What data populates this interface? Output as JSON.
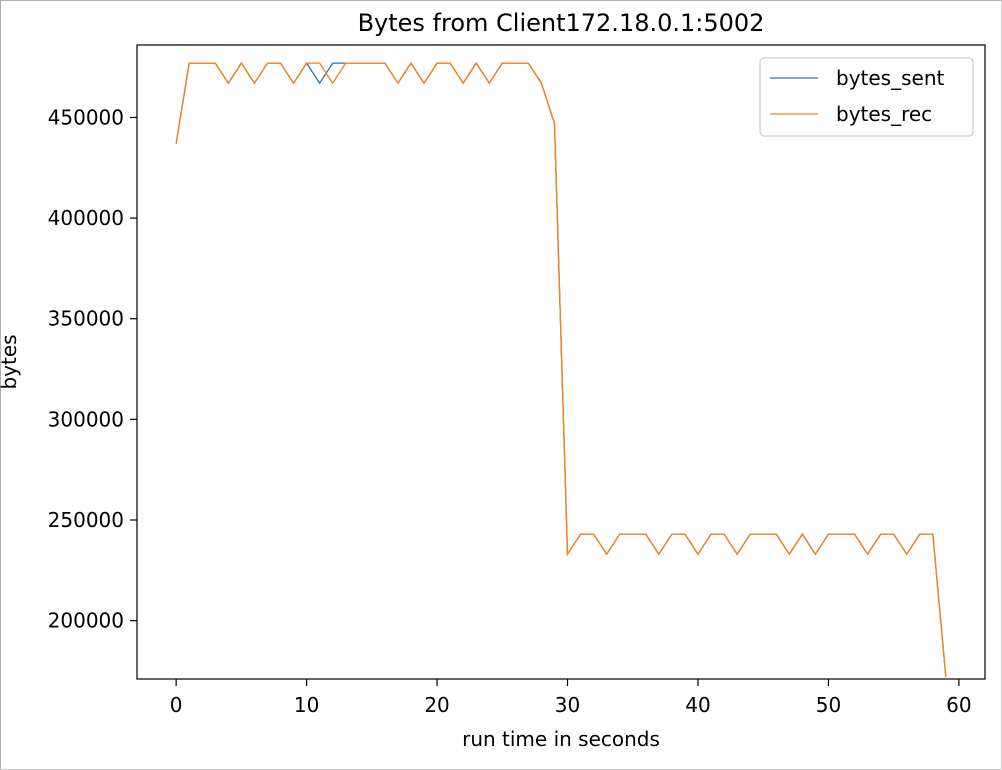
{
  "chart_data": {
    "type": "line",
    "title": "Bytes from Client172.18.0.1:5002",
    "xlabel": "run time in seconds",
    "ylabel": "bytes",
    "xlim": [
      -3,
      62
    ],
    "ylim": [
      171000,
      486000
    ],
    "xticks": [
      0,
      10,
      20,
      30,
      40,
      50,
      60
    ],
    "yticks": [
      200000,
      250000,
      300000,
      350000,
      400000,
      450000
    ],
    "grid": false,
    "legend_position": "upper right",
    "x": [
      0,
      1,
      2,
      3,
      4,
      5,
      6,
      7,
      8,
      9,
      10,
      11,
      12,
      13,
      14,
      15,
      16,
      17,
      18,
      19,
      20,
      21,
      22,
      23,
      24,
      25,
      26,
      27,
      28,
      29,
      30,
      31,
      32,
      33,
      34,
      35,
      36,
      37,
      38,
      39,
      40,
      41,
      42,
      43,
      44,
      45,
      46,
      47,
      48,
      49,
      50,
      51,
      52,
      53,
      54,
      55,
      56,
      57,
      58,
      59
    ],
    "series": [
      {
        "name": "bytes_sent",
        "color": "#1f77b4",
        "values": [
          437000,
          477000,
          477000,
          477000,
          467000,
          477000,
          467000,
          477000,
          477000,
          467000,
          477000,
          467000,
          477000,
          477000,
          477000,
          477000,
          477000,
          467000,
          477000,
          467000,
          477000,
          477000,
          467000,
          477000,
          467000,
          477000,
          477000,
          477000,
          467000,
          447000,
          233000,
          243000,
          243000,
          233000,
          243000,
          243000,
          243000,
          233000,
          243000,
          243000,
          233000,
          243000,
          243000,
          233000,
          243000,
          243000,
          243000,
          233000,
          243000,
          233000,
          243000,
          243000,
          243000,
          233000,
          243000,
          243000,
          233000,
          243000,
          243000,
          172000
        ]
      },
      {
        "name": "bytes_rec",
        "color": "#ff7f0e",
        "values": [
          437000,
          477000,
          477000,
          477000,
          467000,
          477000,
          467000,
          477000,
          477000,
          467000,
          477000,
          477000,
          467000,
          477000,
          477000,
          477000,
          477000,
          467000,
          477000,
          467000,
          477000,
          477000,
          467000,
          477000,
          467000,
          477000,
          477000,
          477000,
          467000,
          447000,
          233000,
          243000,
          243000,
          233000,
          243000,
          243000,
          243000,
          233000,
          243000,
          243000,
          233000,
          243000,
          243000,
          233000,
          243000,
          243000,
          243000,
          233000,
          243000,
          233000,
          243000,
          243000,
          243000,
          233000,
          243000,
          243000,
          233000,
          243000,
          243000,
          172000
        ]
      }
    ]
  }
}
